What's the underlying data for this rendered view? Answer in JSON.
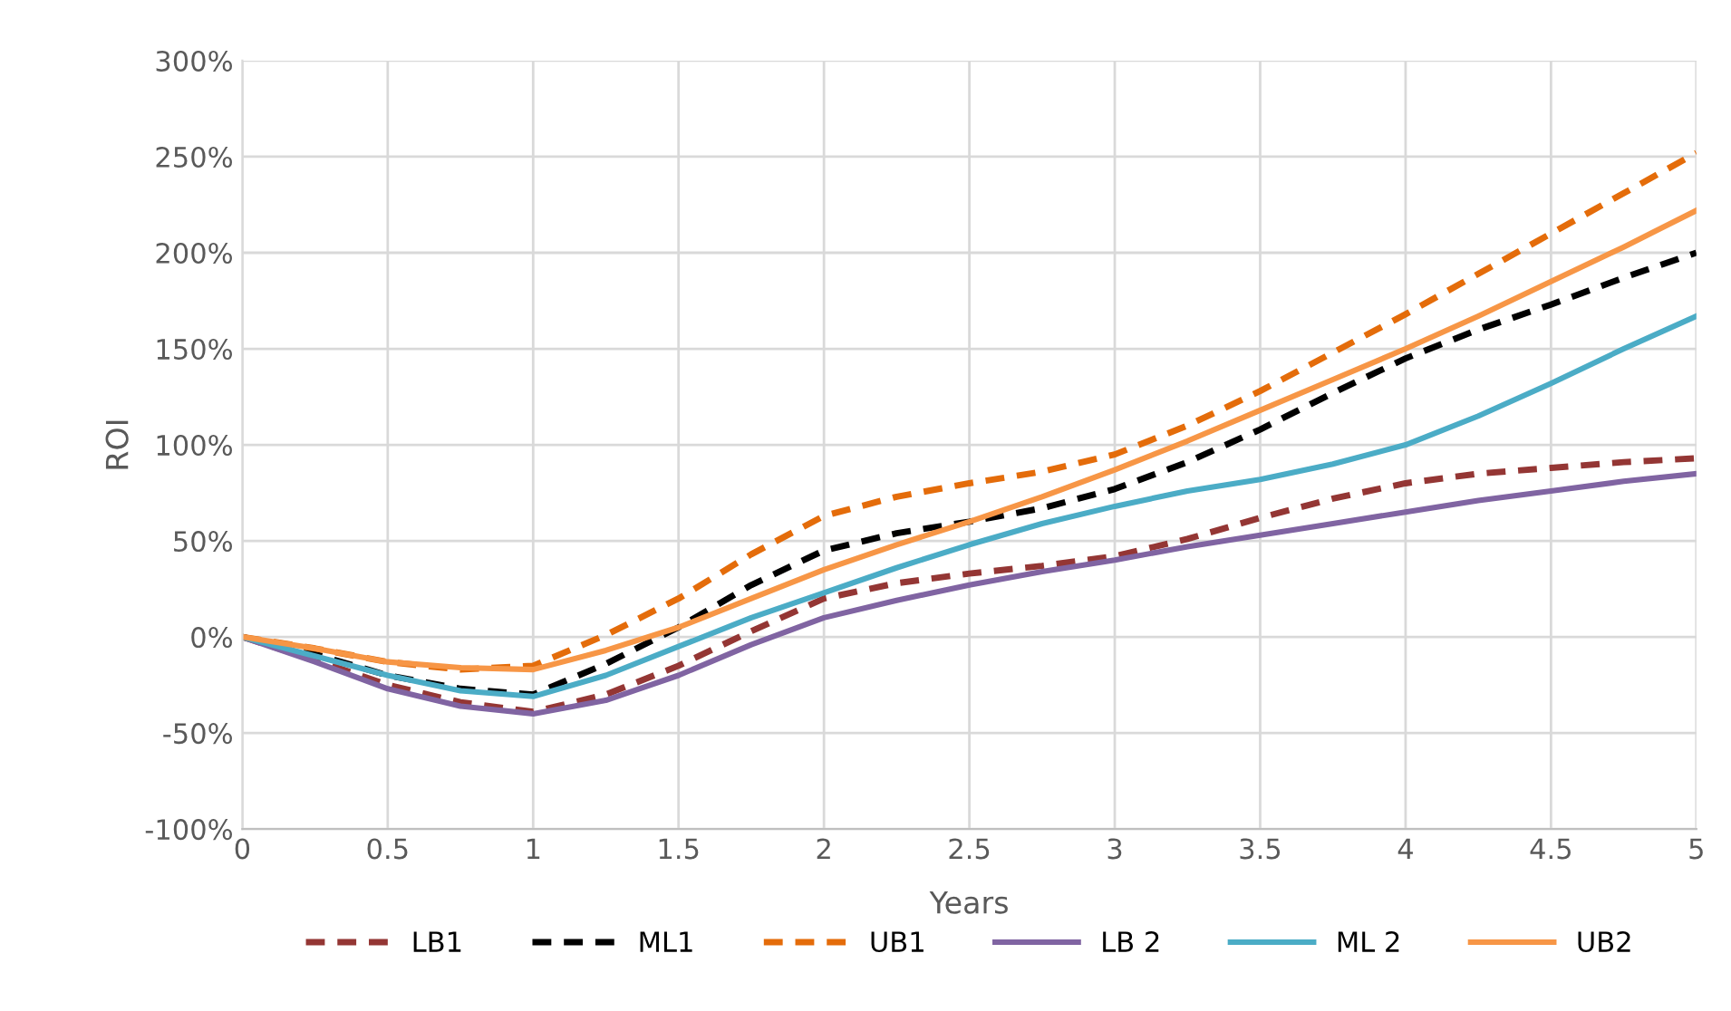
{
  "chart_data": {
    "type": "line",
    "xlabel": "Years",
    "ylabel": "ROI",
    "x": [
      0,
      0.25,
      0.5,
      0.75,
      1,
      1.25,
      1.5,
      1.75,
      2,
      2.25,
      2.5,
      2.75,
      3,
      3.25,
      3.5,
      3.75,
      4,
      4.25,
      4.5,
      4.75,
      5
    ],
    "series": [
      {
        "name": "LB1",
        "color": "#943634",
        "line_style": "dashed",
        "values": [
          0,
          -12,
          -25,
          -34,
          -39,
          -30,
          -15,
          3,
          20,
          28,
          33,
          37,
          42,
          51,
          62,
          72,
          80,
          85,
          88,
          91,
          93
        ]
      },
      {
        "name": "ML1",
        "color": "#000000",
        "line_style": "dashed",
        "values": [
          0,
          -9,
          -20,
          -27,
          -30,
          -14,
          5,
          27,
          45,
          54,
          60,
          67,
          77,
          91,
          108,
          127,
          145,
          160,
          173,
          187,
          200
        ]
      },
      {
        "name": "UB1",
        "color": "#e46c0a",
        "line_style": "dashed",
        "values": [
          0,
          -6,
          -13,
          -17,
          -15,
          1,
          20,
          43,
          63,
          73,
          80,
          86,
          95,
          110,
          128,
          148,
          168,
          189,
          210,
          231,
          252
        ]
      },
      {
        "name": "LB 2",
        "color": "#8064a2",
        "line_style": "solid",
        "values": [
          0,
          -13,
          -27,
          -36,
          -40,
          -33,
          -20,
          -4,
          10,
          19,
          27,
          34,
          40,
          47,
          53,
          59,
          65,
          71,
          76,
          81,
          85
        ]
      },
      {
        "name": "ML 2",
        "color": "#4bacc6",
        "line_style": "solid",
        "values": [
          0,
          -10,
          -20,
          -28,
          -31,
          -20,
          -5,
          10,
          23,
          36,
          48,
          59,
          68,
          76,
          82,
          90,
          100,
          115,
          132,
          150,
          167
        ]
      },
      {
        "name": "UB2",
        "color": "#f79646",
        "line_style": "solid",
        "values": [
          0,
          -6,
          -13,
          -16,
          -17,
          -7,
          5,
          20,
          35,
          48,
          60,
          73,
          87,
          102,
          118,
          134,
          150,
          167,
          185,
          203,
          222
        ]
      }
    ],
    "xlim": [
      0,
      5
    ],
    "xticks": [
      0,
      0.5,
      1,
      1.5,
      2,
      2.5,
      3,
      3.5,
      4,
      4.5,
      5
    ],
    "ylim": [
      -100,
      300
    ],
    "yticks": [
      {
        "value": -100,
        "label": "-100%"
      },
      {
        "value": -50,
        "label": "-50%"
      },
      {
        "value": 0,
        "label": "0%"
      },
      {
        "value": 50,
        "label": "50%"
      },
      {
        "value": 100,
        "label": "100%"
      },
      {
        "value": 150,
        "label": "150%"
      },
      {
        "value": 200,
        "label": "200%"
      },
      {
        "value": 250,
        "label": "250%"
      },
      {
        "value": 300,
        "label": "300%"
      }
    ],
    "grid": true,
    "legend": "bottom",
    "marker": "none"
  }
}
